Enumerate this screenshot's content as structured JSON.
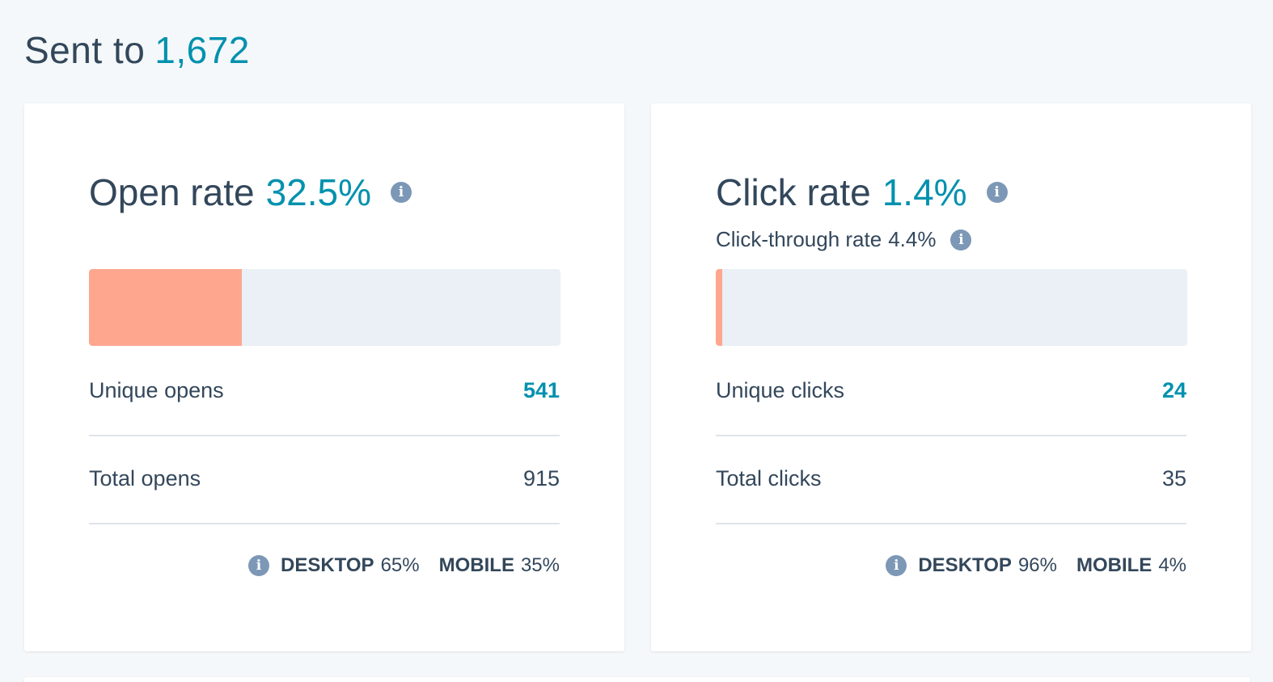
{
  "sent": {
    "label": "Sent to",
    "count": "1,672"
  },
  "open_card": {
    "title": "Open rate",
    "rate": "32.5%",
    "bar_fill_fraction": 0.325,
    "rows": [
      {
        "label": "Unique opens",
        "value": "541"
      },
      {
        "label": "Total opens",
        "value": "915"
      }
    ],
    "devices": {
      "desktop_label": "DESKTOP",
      "desktop_value": "65%",
      "mobile_label": "MOBILE",
      "mobile_value": "35%"
    }
  },
  "click_card": {
    "title": "Click rate",
    "rate": "1.4%",
    "subtitle_label": "Click-through rate",
    "subtitle_value": "4.4%",
    "bar_fill_fraction": 0.014,
    "rows": [
      {
        "label": "Unique clicks",
        "value": "24"
      },
      {
        "label": "Total clicks",
        "value": "35"
      }
    ],
    "devices": {
      "desktop_label": "DESKTOP",
      "desktop_value": "96%",
      "mobile_label": "MOBILE",
      "mobile_value": "4%"
    }
  },
  "icons": {
    "info": "info-icon"
  },
  "colors": {
    "accent": "#0091ae",
    "bar_fill": "#ffa68f",
    "bar_track": "#eaf0f6",
    "info_icon": "#7c98b6",
    "text": "#33475b"
  }
}
